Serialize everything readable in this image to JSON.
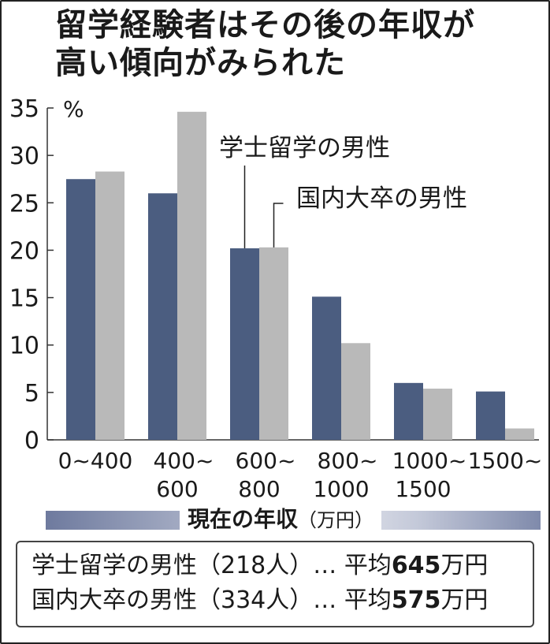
{
  "title": {
    "line1": "留学経験者はその後の年収が",
    "line2": "高い傾向がみられた"
  },
  "chart_data": {
    "type": "bar",
    "categories": [
      [
        "0~400"
      ],
      [
        "400~",
        "600"
      ],
      [
        "600~",
        "800"
      ],
      [
        "800~",
        "1000"
      ],
      [
        "1000~",
        "1500"
      ],
      [
        "1500~"
      ]
    ],
    "series": [
      {
        "name": "学士留学の男性",
        "color": "#4b5d80",
        "values": [
          27.5,
          26.0,
          20.2,
          15.1,
          6.0,
          5.1
        ]
      },
      {
        "name": "国内大卒の男性",
        "color": "#b9b9b9",
        "values": [
          28.3,
          34.6,
          20.3,
          10.2,
          5.4,
          1.2
        ]
      }
    ],
    "ylabel": "%",
    "ylim": [
      0,
      35
    ],
    "yticks": [
      0,
      5,
      10,
      15,
      20,
      25,
      30,
      35
    ],
    "xlabel": "現在の年収",
    "xunit": "（万円）",
    "grid": false,
    "legend": "callout-labels"
  },
  "notes": [
    {
      "label": "学士留学の男性（218人）…",
      "avg_prefix": "平均",
      "avg_value": "645",
      "avg_unit": "万円"
    },
    {
      "label": "国内大卒の男性（334人）…",
      "avg_prefix": "平均",
      "avg_value": "575",
      "avg_unit": "万円"
    }
  ]
}
